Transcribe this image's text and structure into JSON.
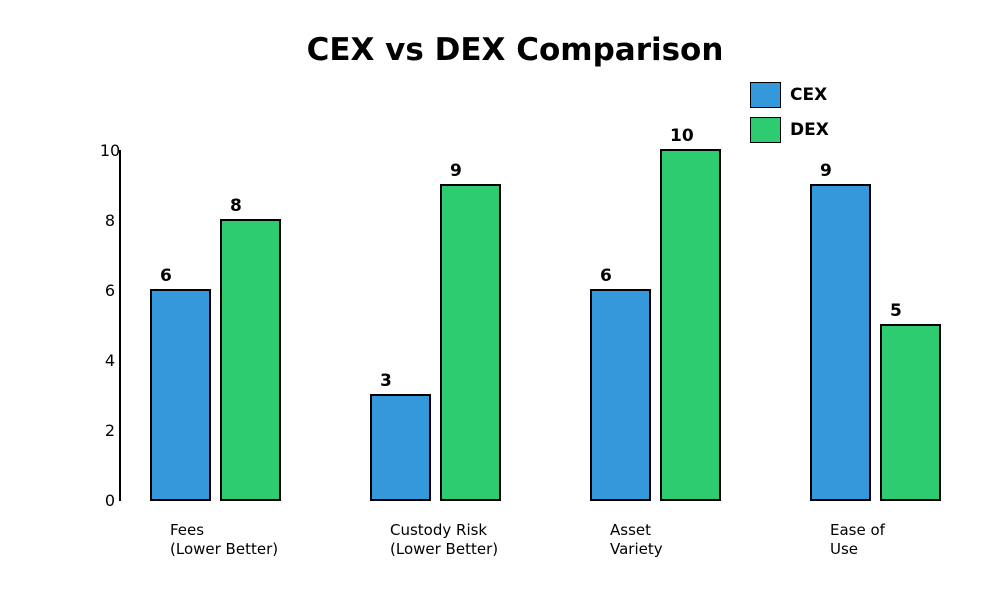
{
  "chart_data": {
    "type": "bar",
    "title": "CEX vs DEX Comparison",
    "categories": [
      [
        "Fees",
        "(Lower Better)"
      ],
      [
        "Custody Risk",
        "(Lower Better)"
      ],
      [
        "Asset",
        "Variety"
      ],
      [
        "Ease of",
        "Use"
      ]
    ],
    "series": [
      {
        "name": "CEX",
        "color": "#3498db",
        "values": [
          6,
          3,
          6,
          9
        ]
      },
      {
        "name": "DEX",
        "color": "#2ecc71",
        "values": [
          8,
          9,
          10,
          5
        ]
      }
    ],
    "ylim": [
      0,
      10
    ],
    "yticks": [
      0,
      2,
      4,
      6,
      8,
      10
    ],
    "grid": false,
    "legend": "top-right",
    "data_labels": true
  }
}
